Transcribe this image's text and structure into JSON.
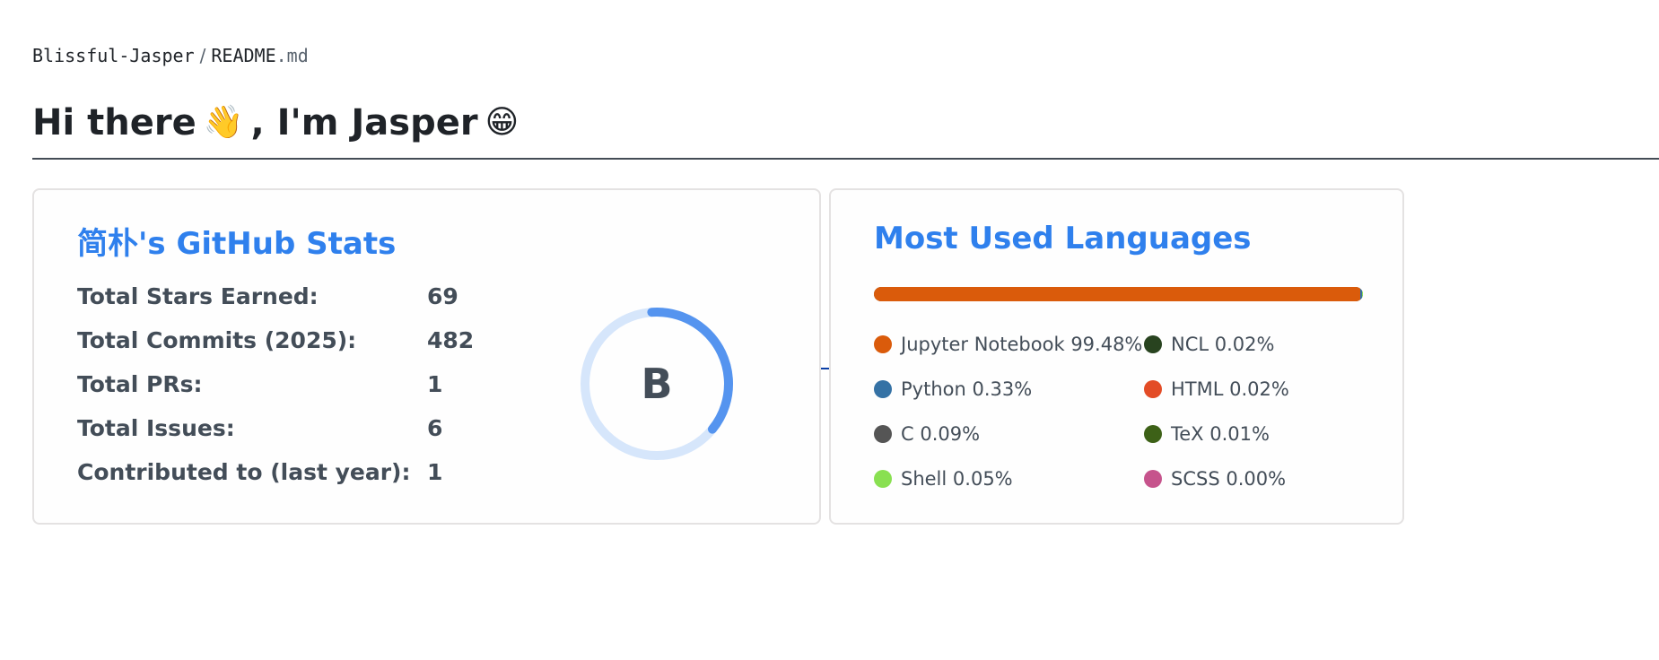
{
  "breadcrumb": {
    "repo": "Blissful-Jasper",
    "separator": "/",
    "file_name": "README",
    "file_ext": ".md"
  },
  "heading": {
    "text_before": "Hi there",
    "wave_emoji": "👋",
    "text_after": ", I'm Jasper",
    "grin_emoji": "😁"
  },
  "stats_card": {
    "title": "简朴's GitHub Stats",
    "rows": [
      {
        "label": "Total Stars Earned:",
        "value": "69"
      },
      {
        "label": "Total Commits (2025):",
        "value": "482"
      },
      {
        "label": "Total PRs:",
        "value": "1"
      },
      {
        "label": "Total Issues:",
        "value": "6"
      },
      {
        "label": "Contributed to (last year):",
        "value": "1"
      }
    ],
    "rank": {
      "grade": "B",
      "progress_fraction": 0.37,
      "ring_color": "#5594ef",
      "track_color": "#d6e6fb"
    }
  },
  "languages_card": {
    "title": "Most Used Languages",
    "languages": [
      {
        "name": "Jupyter Notebook",
        "percent": "99.48%",
        "value": 99.48,
        "color": "#DA5B0B"
      },
      {
        "name": "Python",
        "percent": "0.33%",
        "value": 0.33,
        "color": "#3572A5"
      },
      {
        "name": "C",
        "percent": "0.09%",
        "value": 0.09,
        "color": "#555555"
      },
      {
        "name": "Shell",
        "percent": "0.05%",
        "value": 0.05,
        "color": "#89E051"
      },
      {
        "name": "NCL",
        "percent": "0.02%",
        "value": 0.02,
        "color": "#28431F"
      },
      {
        "name": "HTML",
        "percent": "0.02%",
        "value": 0.02,
        "color": "#E34C26"
      },
      {
        "name": "TeX",
        "percent": "0.01%",
        "value": 0.01,
        "color": "#3D6117"
      },
      {
        "name": "SCSS",
        "percent": "0.00%",
        "value": 0.0,
        "color": "#C6538C"
      }
    ]
  },
  "colors": {
    "title_blue": "#2f80ed",
    "text_gray": "#434d58",
    "card_border": "#e4e2e2"
  }
}
